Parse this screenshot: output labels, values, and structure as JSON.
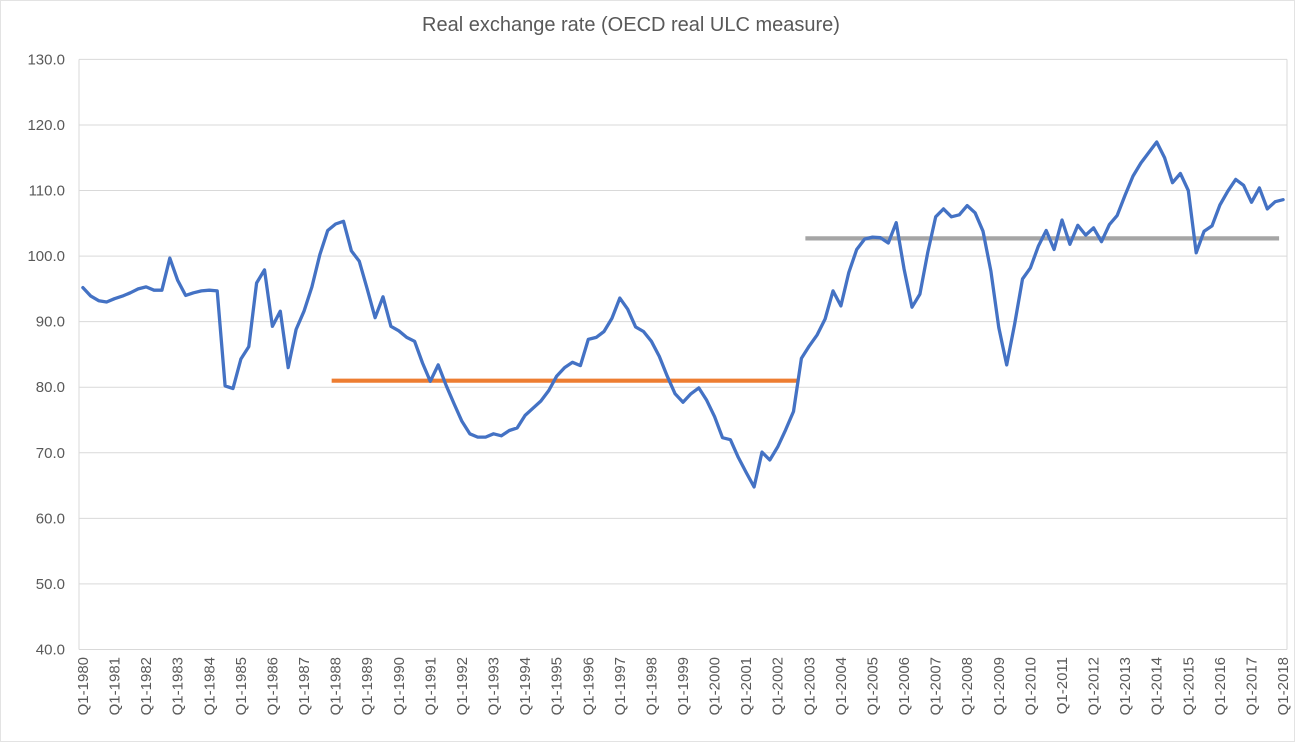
{
  "chart": {
    "title": "Real exchange rate (OECD real ULC measure)"
  },
  "colors": {
    "series_blue": "#4472C4",
    "reference_orange": "#ED7D31",
    "reference_gray": "#A5A5A5",
    "gridline": "#D9D9D9",
    "axis_line": "#D9D9D9",
    "label_text": "#595959",
    "title_text": "#595959",
    "background": "#FFFFFF"
  },
  "chart_data": {
    "type": "line",
    "title": "Real exchange rate (OECD real ULC measure)",
    "xlabel": "",
    "ylabel": "",
    "ylim": [
      40,
      130
    ],
    "y_tick_step": 10,
    "grid": true,
    "legend": "none",
    "y_tick_labels": [
      "130.0",
      "120.0",
      "110.0",
      "100.0",
      "90.0",
      "80.0",
      "70.0",
      "60.0",
      "50.0",
      "40.0"
    ],
    "x_tick_labels": [
      "Q1-1980",
      "Q1-1981",
      "Q1-1982",
      "Q1-1983",
      "Q1-1984",
      "Q1-1985",
      "Q1-1986",
      "Q1-1987",
      "Q1-1988",
      "Q1-1989",
      "Q1-1990",
      "Q1-1991",
      "Q1-1992",
      "Q1-1993",
      "Q1-1994",
      "Q1-1995",
      "Q1-1996",
      "Q1-1997",
      "Q1-1998",
      "Q1-1999",
      "Q1-2000",
      "Q1-2001",
      "Q1-2002",
      "Q1-2003",
      "Q1-2004",
      "Q1-2005",
      "Q1-2006",
      "Q1-2007",
      "Q1-2008",
      "Q1-2009",
      "Q1-2010",
      "Q1-2011",
      "Q1-2012",
      "Q1-2013",
      "Q1-2014",
      "Q1-2015",
      "Q1-2016",
      "Q1-2017",
      "Q1-2018"
    ],
    "x_tick_every_n_points": 4,
    "series": [
      {
        "name": "real-exchange-rate",
        "start_quarter": "Q1-1980",
        "end_quarter": "Q1-2018",
        "frequency": "quarterly",
        "values": [
          95.2,
          93.9,
          93.2,
          93.0,
          93.5,
          93.9,
          94.4,
          95.0,
          95.3,
          94.8,
          94.8,
          99.7,
          96.3,
          94.0,
          94.4,
          94.7,
          94.8,
          94.7,
          80.2,
          79.8,
          84.3,
          86.2,
          95.9,
          97.9,
          89.3,
          91.6,
          83.0,
          88.8,
          91.6,
          95.3,
          100.2,
          103.9,
          104.9,
          105.3,
          100.8,
          99.2,
          95.0,
          90.6,
          93.8,
          89.3,
          88.6,
          87.6,
          87.0,
          83.7,
          80.9,
          83.4,
          80.3,
          77.5,
          74.8,
          72.9,
          72.4,
          72.4,
          72.9,
          72.6,
          73.4,
          73.8,
          75.7,
          76.8,
          77.9,
          79.5,
          81.7,
          83.0,
          83.8,
          83.3,
          87.3,
          87.6,
          88.5,
          90.5,
          93.6,
          91.9,
          89.2,
          88.5,
          87.0,
          84.7,
          81.7,
          79.0,
          77.7,
          79.0,
          79.9,
          78.0,
          75.5,
          72.3,
          72.0,
          69.3,
          67.0,
          64.8,
          70.1,
          68.9,
          70.9,
          73.5,
          76.3,
          84.4,
          86.3,
          88.0,
          90.4,
          94.7,
          92.4,
          97.5,
          101.0,
          102.6,
          102.9,
          102.8,
          102.0,
          105.1,
          98.0,
          92.2,
          94.2,
          100.6,
          106.0,
          107.2,
          106.0,
          106.3,
          107.7,
          106.6,
          103.8,
          97.7,
          89.1,
          83.4,
          89.6,
          96.5,
          98.2,
          101.5,
          103.9,
          101.0,
          105.5,
          101.8,
          104.7,
          103.2,
          104.3,
          102.2,
          104.8,
          106.2,
          109.3,
          112.2,
          114.2,
          115.8,
          117.4,
          115.0,
          111.2,
          112.6,
          110.0,
          100.5,
          103.8,
          104.6,
          107.8,
          109.9,
          111.7,
          110.8,
          108.2,
          110.4,
          107.2,
          108.3,
          108.6
        ]
      }
    ],
    "reference_lines": [
      {
        "name": "period-average-1988-2002",
        "value": 81.0,
        "from": "Q1-1988",
        "to": "Q3-2002",
        "color_key": "reference_orange"
      },
      {
        "name": "period-average-2003-2018",
        "value": 102.7,
        "from": "Q1-2003",
        "to": "Q4-2017",
        "color_key": "reference_gray"
      }
    ]
  }
}
